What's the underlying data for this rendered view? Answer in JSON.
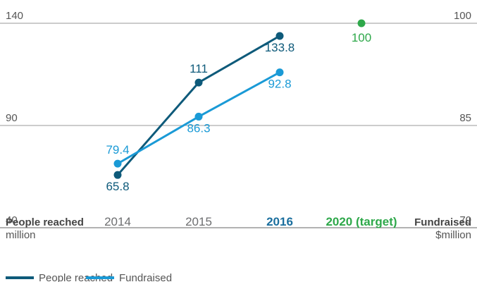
{
  "chart_data": {
    "type": "line",
    "categories": [
      "2014",
      "2015",
      "2016",
      "2020 (target)"
    ],
    "category_colors": [
      "#6d6e70",
      "#6d6e70",
      "#1b6f9e",
      "#2ea84a"
    ],
    "category_bold": [
      false,
      false,
      true,
      true
    ],
    "y_label": "People reached",
    "y_unit": "million",
    "y2_label": "Fundraised",
    "y2_unit": "$million",
    "ylim": [
      40,
      140
    ],
    "yticks": [
      40,
      90,
      140
    ],
    "y2lim": [
      70,
      100
    ],
    "y2ticks": [
      70,
      85,
      100
    ],
    "series": [
      {
        "name": "People reached",
        "color": "#0e5a7a",
        "values": [
          65.8,
          111,
          133.8,
          null
        ]
      },
      {
        "name": "Fundraised",
        "color": "#1a9ad6",
        "axis": "y2",
        "values": [
          79.4,
          86.3,
          92.8,
          null
        ]
      }
    ],
    "target": {
      "value": 100,
      "color": "#2ea84a",
      "axis": "y2"
    }
  }
}
